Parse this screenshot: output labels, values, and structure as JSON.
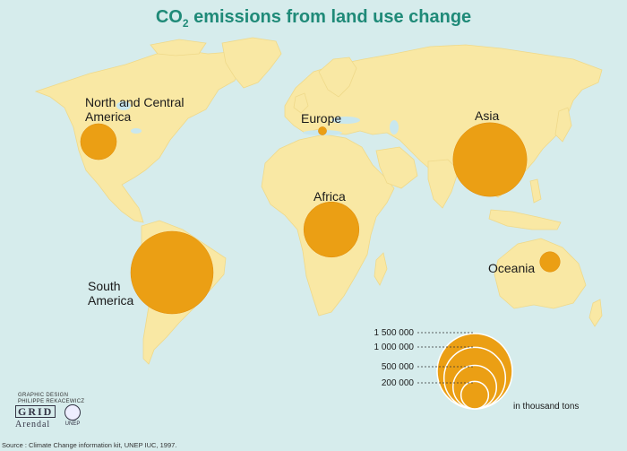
{
  "title": {
    "prefix": "CO",
    "subscript": "2",
    "suffix": " emissions from land use change"
  },
  "colors": {
    "ocean": "#d6ecec",
    "land": "#f9e8a4",
    "bubble": "#eb9f14",
    "title": "#1f8a78",
    "lake": "#c9e7ee"
  },
  "regions": [
    {
      "name": "North and Central America",
      "label_lines": [
        "North and Central",
        "America"
      ],
      "value_fraction": 0.19
    },
    {
      "name": "Europe",
      "label_lines": [
        "Europe"
      ],
      "value_fraction": 0.01
    },
    {
      "name": "Asia",
      "label_lines": [
        "Asia"
      ],
      "value_fraction": 0.8
    },
    {
      "name": "Africa",
      "label_lines": [
        "Africa"
      ],
      "value_fraction": 0.45
    },
    {
      "name": "South America",
      "label_lines": [
        "South",
        "America"
      ],
      "value_fraction": 1.0
    },
    {
      "name": "Oceania",
      "label_lines": [
        "Oceania"
      ],
      "value_fraction": 0.06
    }
  ],
  "legend": {
    "entries": [
      "1 500 000",
      "1 000 000",
      "500 000",
      "200 000"
    ],
    "values": [
      1500000,
      1000000,
      500000,
      200000
    ],
    "unit": "in thousand tons"
  },
  "credit": {
    "line1": "GRAPHIC DESIGN",
    "line2": "PHILIPPE REKACEWICZ"
  },
  "logos": {
    "grid": "GRID",
    "arendal": "Arendal",
    "unep": "UNEP"
  },
  "source": "Source : Climate Change information kit, UNEP IUC, 1997."
}
